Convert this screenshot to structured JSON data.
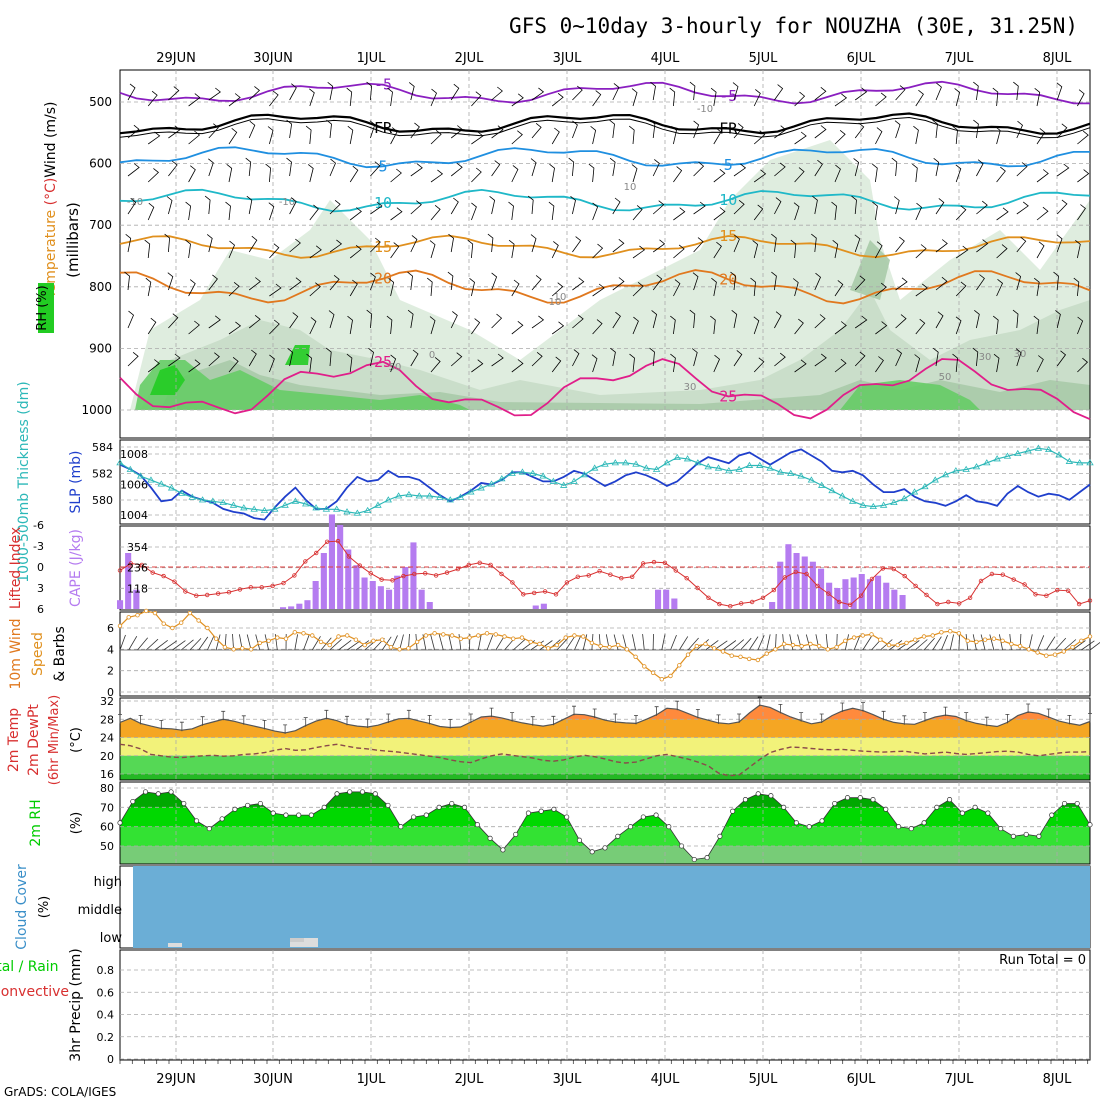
{
  "title": "GFS 0~10day 3-hourly for NOUZHA (30E, 31.25N)",
  "credit": "GrADS: COLA/IGES",
  "date_labels": [
    "29JUN",
    "30JUN",
    "1JUL",
    "2JUL",
    "3JUL",
    "4JUL",
    "5JUL",
    "6JUL",
    "7JUL",
    "8JUL"
  ],
  "colors": {
    "cloud_blue": "#6baed6",
    "rh_green": "#00cc00",
    "temp_orange": "#f08c1e",
    "cape_purple": "#b57cf0",
    "slp_blue": "#1f3fcc",
    "thickness_cyan": "#2cb8b8",
    "lifted_red": "#d83030",
    "wind_orange": "#e09020"
  },
  "chart_data": [
    {
      "type": "contour",
      "panel": "upper-air",
      "ylabel": "(millibars)",
      "legend_labels": [
        "Wind (m/s)",
        "Temperature (°C)",
        "RH (%)"
      ],
      "y_ticks": [
        500,
        600,
        700,
        800,
        900,
        1000
      ],
      "temperature_contours": [
        {
          "label": "-5",
          "level_mb": 485
        },
        {
          "label": "FR",
          "level_mb": 535
        },
        {
          "label": "5",
          "level_mb": 590
        },
        {
          "label": "10",
          "level_mb": 660
        },
        {
          "label": "15",
          "level_mb": 735
        },
        {
          "label": "20",
          "level_mb": 800
        },
        {
          "label": "25",
          "level_mb": 965
        }
      ],
      "rh_contour_labels": [
        "-10",
        "-10",
        "10",
        "10",
        "0",
        "30",
        "30",
        "50",
        "50",
        "30",
        "-10",
        "10"
      ]
    },
    {
      "type": "line",
      "panel": "thickness-slp",
      "ylabels": [
        "1000-500mb Thickness (dm)",
        "SLP (mb)"
      ],
      "y_ticks_left": [
        580,
        582,
        584
      ],
      "y_ticks_right": [
        1004,
        1006,
        1008
      ],
      "series": [
        {
          "name": "SLP (mb)",
          "values": [
            1007.3,
            1007.0,
            1006.6,
            1005.8,
            1004.9,
            1005.0,
            1005.6,
            1005.2,
            1005.0,
            1004.8,
            1004.4,
            1004.2,
            1004.1,
            1003.8,
            1003.7,
            1004.5,
            1005.2,
            1005.8,
            1005.0,
            1004.4,
            1004.4,
            1004.9,
            1005.8,
            1006.5,
            1006.2,
            1006.3,
            1006.9,
            1006.5,
            1006.5,
            1006.3,
            1005.8,
            1005.3,
            1004.9,
            1005.2,
            1005.6,
            1006.1,
            1006.0,
            1006.3,
            1006.8,
            1006.8,
            1006.5,
            1006.2,
            1006.2,
            1006.5,
            1006.9,
            1006.7,
            1006.3,
            1005.9,
            1006.2,
            1006.6,
            1006.8,
            1006.6,
            1006.3,
            1005.9,
            1006.2,
            1006.8,
            1007.4,
            1007.8,
            1007.6,
            1007.4,
            1007.9,
            1008.1,
            1007.7,
            1007.3,
            1007.7,
            1008.1,
            1008.3,
            1007.9,
            1007.5,
            1006.9,
            1006.8,
            1006.9,
            1006.6,
            1006.0,
            1005.5,
            1005.5,
            1005.7,
            1005.2,
            1004.9,
            1004.8,
            1004.6,
            1004.9,
            1005.3,
            1004.9,
            1004.8,
            1004.6,
            1005.4,
            1005.9,
            1005.5,
            1005.2,
            1005.4,
            1005.3,
            1005.0,
            1005.5,
            1006.0
          ]
        },
        {
          "name": "1000-500mb Thickness (dm)",
          "values": [
            582.8,
            582.3,
            581.8,
            581.5,
            581.2,
            580.9,
            580.5,
            580.2,
            580.0,
            579.9,
            579.8,
            579.6,
            579.4,
            579.3,
            579.2,
            579.3,
            579.6,
            579.9,
            579.7,
            579.4,
            579.3,
            579.3,
            579.1,
            579.0,
            579.2,
            579.6,
            580.0,
            580.3,
            580.4,
            580.3,
            580.3,
            580.2,
            580.0,
            580.2,
            580.6,
            580.9,
            581.2,
            581.6,
            582.0,
            582.1,
            582.0,
            581.8,
            581.4,
            581.1,
            581.4,
            581.9,
            582.4,
            582.7,
            582.8,
            582.8,
            582.7,
            582.4,
            582.3,
            582.8,
            583.2,
            583.1,
            582.8,
            582.5,
            582.4,
            582.2,
            582.3,
            582.6,
            582.6,
            582.4,
            582.1,
            582.0,
            581.8,
            581.5,
            581.1,
            580.7,
            580.3,
            579.9,
            579.6,
            579.5,
            579.6,
            579.8,
            580.1,
            580.6,
            581.0,
            581.5,
            581.9,
            582.2,
            582.3,
            582.5,
            582.8,
            583.1,
            583.3,
            583.5,
            583.7,
            583.9,
            583.8,
            583.4,
            582.9,
            582.8,
            582.8
          ]
        }
      ]
    },
    {
      "type": "bar",
      "panel": "cape-lifted-index",
      "ylabels": [
        "Lifted Index",
        "CAPE (J/kg)"
      ],
      "y_ticks_left": [
        -6,
        -3,
        0,
        3,
        6
      ],
      "y_ticks_right": [
        118,
        236,
        354
      ],
      "series": [
        {
          "name": "CAPE (J/kg)",
          "values": [
            50,
            320,
            110,
            0,
            0,
            0,
            0,
            0,
            0,
            0,
            0,
            0,
            0,
            0,
            0,
            0,
            0,
            0,
            0,
            0,
            10,
            15,
            30,
            50,
            160,
            320,
            540,
            480,
            340,
            250,
            180,
            160,
            130,
            110,
            190,
            240,
            380,
            110,
            40,
            0,
            0,
            0,
            0,
            0,
            0,
            0,
            0,
            0,
            0,
            0,
            0,
            20,
            30,
            0,
            0,
            0,
            0,
            0,
            0,
            0,
            0,
            0,
            0,
            0,
            0,
            0,
            110,
            110,
            60,
            0,
            0,
            0,
            0,
            0,
            0,
            0,
            0,
            0,
            0,
            0,
            40,
            270,
            370,
            320,
            300,
            270,
            230,
            150,
            120,
            170,
            180,
            200,
            170,
            190,
            150,
            110,
            80,
            0,
            0,
            0,
            0,
            0,
            0,
            0,
            0,
            0,
            0,
            0,
            0,
            0,
            0,
            0,
            0,
            0,
            0,
            0,
            0,
            0,
            0,
            0
          ]
        },
        {
          "name": "Lifted Index",
          "values": [
            0.5,
            -0.5,
            -0.3,
            0.8,
            1.3,
            2.1,
            3.5,
            4.1,
            4.0,
            3.8,
            3.6,
            3.2,
            2.9,
            2.9,
            2.7,
            2.3,
            1.2,
            -0.8,
            -2.0,
            -3.6,
            -3.7,
            -1.5,
            -0.2,
            0.9,
            1.8,
            1.9,
            1.3,
            1.0,
            0.9,
            1.2,
            0.8,
            0.3,
            -0.3,
            -0.6,
            -0.3,
            1.0,
            2.2,
            3.9,
            3.7,
            3.5,
            3.9,
            2.2,
            1.4,
            1.2,
            0.6,
            1.1,
            1.6,
            1.4,
            -0.5,
            -0.7,
            -0.6,
            0.5,
            1.6,
            3.0,
            4.4,
            5.3,
            5.6,
            5.2,
            5.0,
            4.4,
            3.3,
            1.5,
            0.7,
            1.0,
            2.7,
            3.8,
            5.0,
            5.4,
            4.1,
            1.7,
            0.2,
            0.3,
            1.3,
            2.7,
            4.0,
            5.3,
            5.0,
            5.2,
            4.4,
            2.0,
            1.0,
            1.1,
            1.8,
            2.5,
            3.9,
            4.1,
            3.3,
            3.4,
            5.3,
            4.8
          ]
        }
      ]
    },
    {
      "type": "line",
      "panel": "wind",
      "ylabel": "10m Wind Speed & Barbs (m/s)",
      "y_ticks": [
        0,
        2,
        4,
        6
      ],
      "values": [
        6.2,
        7.0,
        7.2,
        7.6,
        7.4,
        6.4,
        6.0,
        6.5,
        7.4,
        6.7,
        6.0,
        5.0,
        4.2,
        4.0,
        4.1,
        4.0,
        4.6,
        4.8,
        5.1,
        5.0,
        5.6,
        5.5,
        5.3,
        4.7,
        4.4,
        5.2,
        5.3,
        4.9,
        4.4,
        4.8,
        4.9,
        4.2,
        4.0,
        4.1,
        4.7,
        5.3,
        5.5,
        5.4,
        5.3,
        5.0,
        5.1,
        5.3,
        5.5,
        5.4,
        5.2,
        5.0,
        5.1,
        4.7,
        4.5,
        4.1,
        4.4,
        5.1,
        5.3,
        5.2,
        4.6,
        4.3,
        4.2,
        4.4,
        4.0,
        3.3,
        2.4,
        1.8,
        1.2,
        1.5,
        2.5,
        3.5,
        4.3,
        4.5,
        4.1,
        3.8,
        3.4,
        3.3,
        3.1,
        3.0,
        3.6,
        4.0,
        4.5,
        4.4,
        4.3,
        4.5,
        4.3,
        4.0,
        4.2,
        4.8,
        5.1,
        5.3,
        5.4,
        4.9,
        4.4,
        4.4,
        4.6,
        4.9,
        5.2,
        5.3,
        5.6,
        5.7,
        5.5,
        4.8,
        4.7,
        4.9,
        5.0,
        4.8,
        4.5,
        4.3,
        4.0,
        3.7,
        3.4,
        3.5,
        3.8,
        4.2,
        4.8,
        5.2
      ]
    },
    {
      "type": "area",
      "panel": "temperature",
      "ylabel": "2m Temp 2m DewPt (6hr Min/Max) (°C)",
      "y_ticks": [
        16,
        20,
        24,
        28,
        32
      ],
      "series": [
        {
          "name": "2m Temp",
          "values": [
            27.3,
            28.2,
            27.1,
            26.5,
            26.0,
            25.9,
            25.6,
            25.9,
            26.8,
            27.4,
            28.0,
            27.6,
            27.0,
            26.5,
            26.0,
            25.4,
            25.0,
            25.5,
            26.6,
            27.6,
            28.2,
            27.7,
            26.9,
            26.5,
            26.3,
            26.7,
            27.4,
            28.1,
            28.2,
            27.6,
            27.1,
            26.4,
            26.2,
            26.3,
            27.4,
            28.5,
            28.7,
            28.3,
            27.7,
            27.2,
            26.8,
            26.5,
            26.9,
            28.0,
            29.1,
            29.0,
            28.5,
            27.8,
            27.4,
            27.2,
            27.1,
            28.0,
            29.0,
            30.4,
            30.2,
            29.3,
            28.4,
            27.8,
            27.2,
            27.0,
            27.4,
            29.4,
            31.1,
            30.6,
            29.5,
            28.5,
            27.7,
            27.0,
            27.4,
            28.8,
            29.8,
            30.4,
            29.9,
            29.0,
            28.0,
            27.3,
            27.0,
            26.9,
            27.7,
            28.5,
            28.9,
            28.6,
            27.7,
            27.1,
            26.7,
            26.4,
            27.3,
            28.8,
            29.6,
            29.3,
            28.5,
            27.6,
            27.1,
            26.7,
            27.5
          ]
        },
        {
          "name": "2m DewPt",
          "values": [
            22.5,
            22.2,
            21.5,
            20.3,
            20.0,
            19.7,
            19.6,
            19.8,
            20.0,
            20.1,
            19.9,
            20.0,
            20.3,
            20.4,
            20.7,
            21.2,
            21.6,
            21.2,
            21.3,
            21.8,
            22.2,
            22.5,
            22.1,
            21.7,
            21.5,
            21.2,
            21.0,
            20.8,
            20.5,
            20.2,
            19.9,
            19.6,
            19.1,
            18.7,
            18.5,
            19.3,
            20.0,
            20.4,
            20.1,
            19.8,
            19.5,
            19.0,
            18.8,
            19.1,
            19.7,
            20.1,
            19.8,
            19.3,
            18.7,
            18.4,
            18.6,
            19.3,
            20.0,
            20.3,
            19.8,
            19.3,
            18.6,
            17.8,
            16.2,
            15.6,
            15.8,
            17.5,
            19.2,
            20.7,
            21.4,
            21.9,
            21.8,
            21.6,
            21.4,
            21.3,
            21.4,
            21.2,
            21.0,
            20.9,
            20.8,
            20.9,
            21.0,
            20.7,
            20.4,
            20.6,
            20.8,
            20.5,
            20.3,
            20.5,
            20.7,
            20.9,
            21.0,
            20.8,
            20.3,
            20.0,
            20.3,
            20.6,
            20.8,
            20.8,
            20.9
          ]
        }
      ]
    },
    {
      "type": "area",
      "panel": "relative-humidity",
      "ylabel": "2m RH (%)",
      "y_ticks": [
        50,
        60,
        70,
        80
      ],
      "values": [
        62,
        73,
        78,
        77,
        78,
        72,
        63,
        59,
        64,
        69,
        71,
        72,
        67,
        66,
        66,
        66,
        70,
        77,
        78,
        78,
        77,
        71,
        60,
        65,
        66,
        70,
        72,
        70,
        61,
        54,
        48,
        56,
        67,
        68,
        69,
        65,
        53,
        47,
        49,
        55,
        60,
        65,
        66,
        60,
        50,
        43,
        44,
        55,
        68,
        74,
        77,
        76,
        70,
        62,
        60,
        63,
        72,
        75,
        75,
        74,
        69,
        60,
        59,
        62,
        70,
        74,
        67,
        70,
        67,
        59,
        55,
        56,
        55,
        66,
        72,
        72,
        61
      ]
    },
    {
      "type": "area",
      "panel": "cloud-cover",
      "ylabel": "Cloud Cover (%)",
      "categories": [
        "high",
        "middle",
        "low"
      ],
      "levels": {
        "high": 100,
        "middle": 100,
        "low": 100
      }
    },
    {
      "type": "bar",
      "panel": "precipitation",
      "ylabel": "3hr Precip (mm)",
      "legend_labels": [
        "Total / Rain",
        "Convective"
      ],
      "y_ticks": [
        0,
        0.2,
        0.4,
        0.6,
        0.8
      ],
      "annotation": "Run Total = 0",
      "values": []
    }
  ]
}
